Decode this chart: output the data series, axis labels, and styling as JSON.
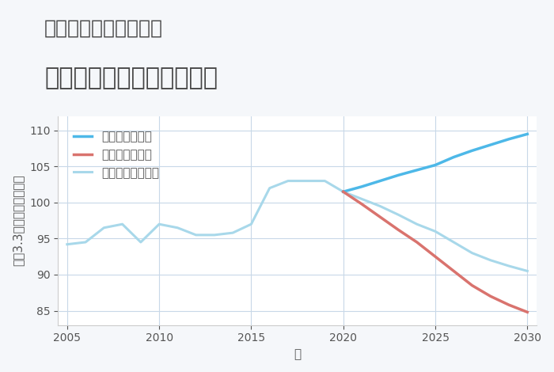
{
  "title_line1": "岐阜県恵那市明智町の",
  "title_line2": "中古マンションの価格推移",
  "xlabel": "年",
  "ylabel": "坪（3.3㎡）単価（万円）",
  "ylim": [
    83,
    112
  ],
  "xlim": [
    2004.5,
    2030.5
  ],
  "yticks": [
    85,
    90,
    95,
    100,
    105,
    110
  ],
  "xticks": [
    2005,
    2010,
    2015,
    2020,
    2025,
    2030
  ],
  "background_color": "#f0f4f8",
  "plot_bg_color": "#ffffff",
  "good_scenario": {
    "label": "グッドシナリオ",
    "color": "#4db8e8",
    "x": [
      2020,
      2021,
      2022,
      2023,
      2024,
      2025,
      2026,
      2027,
      2028,
      2029,
      2030
    ],
    "y": [
      101.5,
      102.2,
      103.0,
      103.8,
      104.5,
      105.2,
      106.3,
      107.2,
      108.0,
      108.8,
      109.5
    ]
  },
  "bad_scenario": {
    "label": "バッドシナリオ",
    "color": "#d9736e",
    "x": [
      2020,
      2021,
      2022,
      2023,
      2024,
      2025,
      2026,
      2027,
      2028,
      2029,
      2030
    ],
    "y": [
      101.5,
      99.8,
      98.0,
      96.2,
      94.5,
      92.5,
      90.5,
      88.5,
      87.0,
      85.8,
      84.8
    ]
  },
  "normal_scenario": {
    "label": "ノーマルシナリオ",
    "color": "#a8d8ea",
    "x_hist": [
      2005,
      2006,
      2007,
      2008,
      2009,
      2010,
      2011,
      2012,
      2013,
      2014,
      2015,
      2016,
      2017,
      2018,
      2019,
      2020
    ],
    "y_hist": [
      94.2,
      94.5,
      96.5,
      97.0,
      94.5,
      97.0,
      96.5,
      95.5,
      95.5,
      95.8,
      97.0,
      102.0,
      103.0,
      103.0,
      103.0,
      101.5
    ],
    "x_future": [
      2020,
      2021,
      2022,
      2023,
      2024,
      2025,
      2026,
      2027,
      2028,
      2029,
      2030
    ],
    "y_future": [
      101.5,
      100.5,
      99.5,
      98.3,
      97.0,
      96.0,
      94.5,
      93.0,
      92.0,
      91.2,
      90.5
    ]
  },
  "grid_color": "#c8d8e8",
  "legend_fontsize": 11,
  "title_fontsize1": 18,
  "title_fontsize2": 22,
  "axis_label_fontsize": 11
}
